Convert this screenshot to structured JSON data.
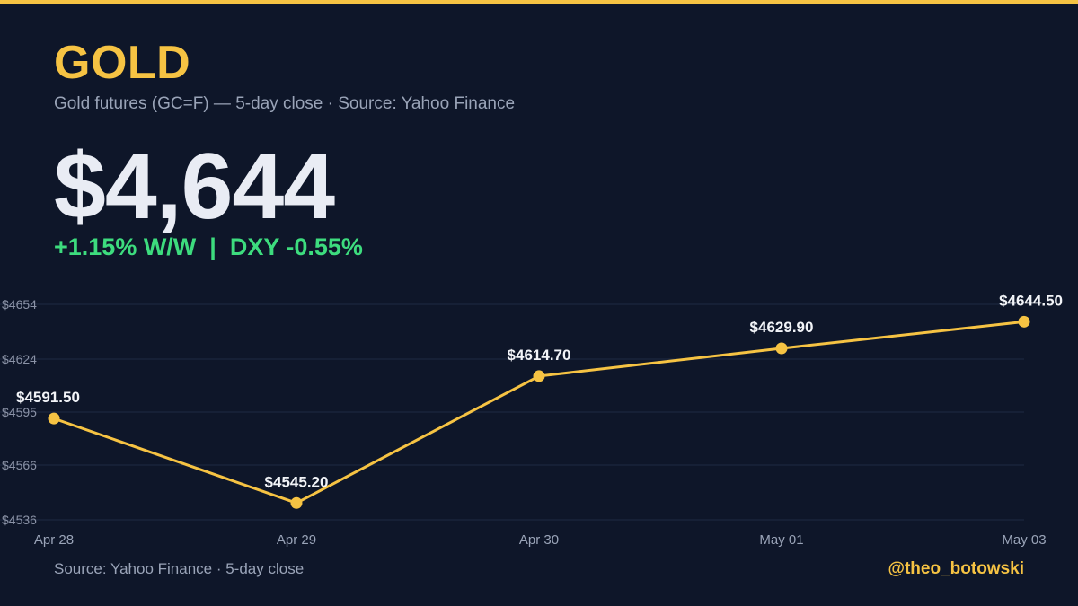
{
  "header": {
    "title": "GOLD",
    "subtitle": "Gold futures (GC=F) — 5-day close · Source: Yahoo Finance",
    "price": "$4,644",
    "change": "+1.15% W/W  |  DXY -0.55%"
  },
  "footer": {
    "source": "Source: Yahoo Finance · 5-day close",
    "handle": "@theo_botowski"
  },
  "colors": {
    "background": "#0e1629",
    "accent": "#f6c343",
    "positive": "#3ddc7e",
    "grid": "#1f2a44"
  },
  "chart_data": {
    "type": "line",
    "categories": [
      "Apr 28",
      "Apr 29",
      "Apr 30",
      "May 01",
      "May 03"
    ],
    "series": [
      {
        "values": [
          4591.5,
          4545.2,
          4614.7,
          4629.9,
          4644.5
        ]
      }
    ],
    "data_labels": [
      "$4591.50",
      "$4545.20",
      "$4614.70",
      "$4629.90",
      "$4644.50"
    ],
    "yticks": [
      4536,
      4566,
      4595,
      4624,
      4654
    ],
    "ytick_labels": [
      "$4536",
      "$4566",
      "$4595",
      "$4624",
      "$4654"
    ],
    "ylim": [
      4536,
      4654
    ],
    "grid": true,
    "legend": "none"
  }
}
